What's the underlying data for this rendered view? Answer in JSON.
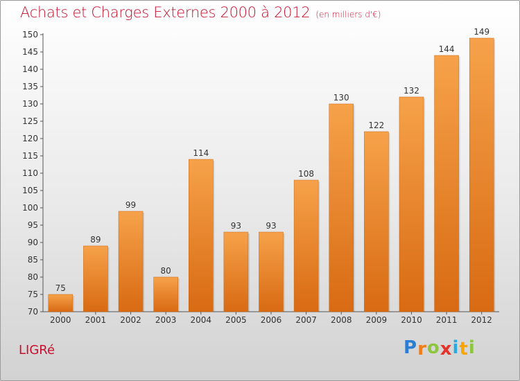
{
  "title": "Achats et Charges Externes 2000 à 2012",
  "subtitle": "(en milliers d'€)",
  "commune": "LIGRé",
  "logo": {
    "letters": [
      {
        "char": "P",
        "color": "#2a7fd4"
      },
      {
        "char": "r",
        "color": "#f07d1a"
      },
      {
        "char": "o",
        "color": "#8cc63f"
      },
      {
        "char": "x",
        "color": "#e6332a"
      },
      {
        "char": "i",
        "color": "#29abe2"
      },
      {
        "char": "t",
        "color": "#f7a600"
      },
      {
        "char": "i",
        "color": "#8cc63f"
      }
    ]
  },
  "colors": {
    "bar_top": "#f6a24a",
    "bar_bottom": "#d86a12",
    "title": "#c8102e"
  },
  "chart_data": {
    "type": "bar",
    "title": "Achats et Charges Externes 2000 à 2012",
    "subtitle": "(en milliers d'€)",
    "categories": [
      "2000",
      "2001",
      "2002",
      "2003",
      "2004",
      "2005",
      "2006",
      "2007",
      "2008",
      "2009",
      "2010",
      "2011",
      "2012"
    ],
    "values": [
      75,
      89,
      99,
      80,
      114,
      93,
      93,
      108,
      130,
      122,
      132,
      144,
      149
    ],
    "ylim": [
      70,
      150
    ],
    "yticks": [
      70,
      75,
      80,
      85,
      90,
      95,
      100,
      105,
      110,
      115,
      120,
      125,
      130,
      135,
      140,
      145,
      150
    ],
    "grid": false,
    "xlabel": "",
    "ylabel": ""
  }
}
